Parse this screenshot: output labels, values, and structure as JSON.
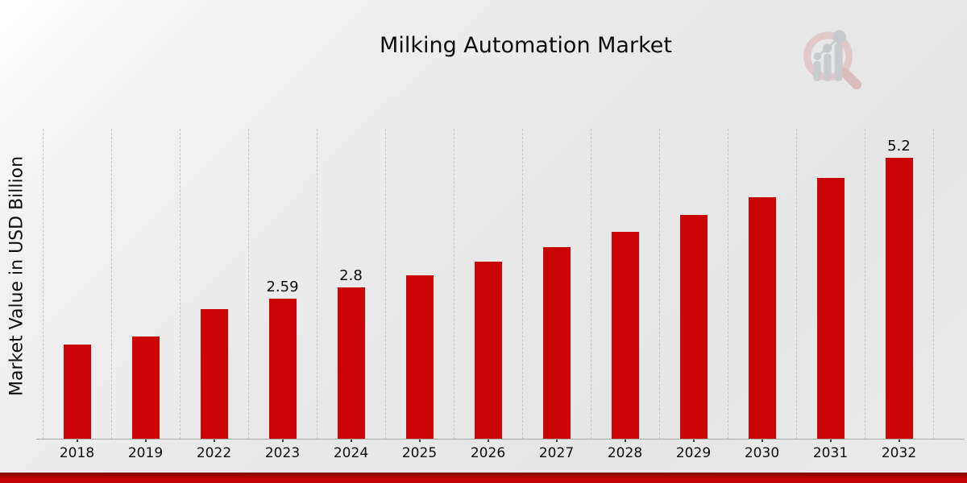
{
  "chart_data": {
    "type": "bar",
    "title": "Milking Automation Market",
    "xlabel": "",
    "ylabel": "Market Value in USD Billion",
    "categories": [
      "2018",
      "2019",
      "2022",
      "2023",
      "2024",
      "2025",
      "2026",
      "2027",
      "2028",
      "2029",
      "2030",
      "2031",
      "2032"
    ],
    "values": [
      1.74,
      1.89,
      2.4,
      2.59,
      2.8,
      3.02,
      3.27,
      3.54,
      3.82,
      4.14,
      4.46,
      4.82,
      5.2
    ],
    "point_labels": [
      "",
      "",
      "",
      "2.59",
      "2.8",
      "",
      "",
      "",
      "",
      "",
      "",
      "",
      "5.2"
    ],
    "ylim": [
      0,
      5.73
    ],
    "grid": "vertical dashed gridlines, no horizontal gridlines, no y tick labels",
    "legend": "none",
    "bar_color": "#cb0505"
  },
  "branding": {
    "logo_icon": "magnifier-bar-chart-logo",
    "ring_color": "#e2c6c6",
    "handle_color": "#dbb9ba",
    "bars_color": "#c6c9cd"
  },
  "footer": {
    "accent_band_color": "#c40505",
    "accent_band_dark_edge": "#7e0606"
  }
}
